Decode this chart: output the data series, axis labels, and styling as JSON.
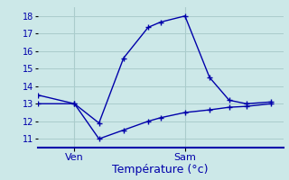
{
  "xlabel": "Température (°c)",
  "background_color": "#cce8e8",
  "grid_color": "#aacccc",
  "line_color": "#0000aa",
  "ylim": [
    10.5,
    18.5
  ],
  "yticks": [
    11,
    12,
    13,
    14,
    15,
    16,
    17,
    18
  ],
  "xlim": [
    0,
    10
  ],
  "x_ven": 1.5,
  "x_sam": 6.0,
  "upper_x": [
    0.0,
    1.5,
    2.5,
    3.5,
    4.5,
    5.0,
    6.0,
    7.0,
    7.8,
    8.5,
    9.5
  ],
  "upper_y": [
    13.5,
    13.0,
    11.9,
    15.6,
    17.35,
    17.65,
    18.0,
    14.5,
    13.2,
    13.0,
    13.1
  ],
  "lower_x": [
    0.0,
    1.5,
    2.5,
    3.5,
    4.5,
    5.0,
    6.0,
    7.0,
    7.8,
    8.5,
    9.5
  ],
  "lower_y": [
    13.0,
    13.0,
    11.0,
    11.5,
    12.0,
    12.2,
    12.5,
    12.65,
    12.8,
    12.85,
    13.0
  ],
  "xlabel_fontsize": 9,
  "ytick_fontsize": 7,
  "xtick_fontsize": 8
}
